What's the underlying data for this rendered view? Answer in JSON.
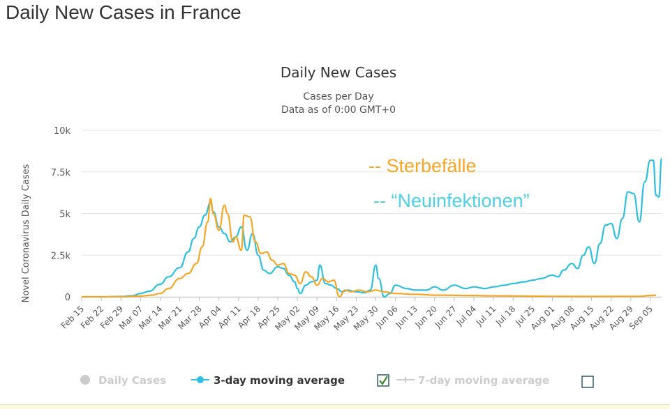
{
  "page": {
    "heading": "Daily New Cases in France"
  },
  "chart_data": {
    "type": "line",
    "title": "Daily New Cases",
    "subtitle_line1": "Cases per Day",
    "subtitle_line2": "Data as of 0:00 GMT+0",
    "ylabel": "Novel Coronavirus Daily Cases",
    "xlabel": "",
    "ylim": [
      0,
      10000
    ],
    "y_ticks": [
      0,
      2500,
      5000,
      7500,
      10000
    ],
    "y_tick_labels": [
      "0",
      "2.5k",
      "5k",
      "7.5k",
      "10k"
    ],
    "grid": true,
    "x_start": "Feb 15",
    "x_end": "Sep 09",
    "x_tick_labels": [
      "Feb 15",
      "Feb 22",
      "Feb 29",
      "Mar 07",
      "Mar 14",
      "Mar 21",
      "Mar 28",
      "Apr 04",
      "Apr 11",
      "Apr 18",
      "Apr 25",
      "May 02",
      "May 09",
      "May 16",
      "May 23",
      "May 30",
      "Jun 06",
      "Jun 13",
      "Jun 20",
      "Jun 27",
      "Jul 04",
      "Jul 11",
      "Jul 18",
      "Jul 25",
      "Aug 01",
      "Aug 08",
      "Aug 15",
      "Aug 22",
      "Aug 29",
      "Sep 05"
    ],
    "series": [
      {
        "name": "3-day moving average",
        "color": "#2cbfe0",
        "points": [
          [
            "Feb 15",
            0
          ],
          [
            "Feb 22",
            0
          ],
          [
            "Feb 29",
            20
          ],
          [
            "Mar 04",
            60
          ],
          [
            "Mar 07",
            200
          ],
          [
            "Mar 10",
            330
          ],
          [
            "Mar 14",
            750
          ],
          [
            "Mar 17",
            1200
          ],
          [
            "Mar 21",
            1750
          ],
          [
            "Mar 24",
            2700
          ],
          [
            "Mar 26",
            3500
          ],
          [
            "Mar 28",
            4200
          ],
          [
            "Mar 30",
            4900
          ],
          [
            "Apr 01",
            5650
          ],
          [
            "Apr 02",
            5100
          ],
          [
            "Apr 04",
            4200
          ],
          [
            "Apr 06",
            3800
          ],
          [
            "Apr 08",
            3300
          ],
          [
            "Apr 10",
            3600
          ],
          [
            "Apr 12",
            4200
          ],
          [
            "Apr 14",
            2800
          ],
          [
            "Apr 16",
            3800
          ],
          [
            "Apr 18",
            2500
          ],
          [
            "Apr 20",
            1600
          ],
          [
            "Apr 22",
            1400
          ],
          [
            "Apr 25",
            1800
          ],
          [
            "Apr 27",
            1700
          ],
          [
            "Apr 29",
            1300
          ],
          [
            "May 01",
            900
          ],
          [
            "May 02",
            500
          ],
          [
            "May 03",
            200
          ],
          [
            "May 05",
            700
          ],
          [
            "May 07",
            900
          ],
          [
            "May 09",
            1000
          ],
          [
            "May 10",
            1900
          ],
          [
            "May 12",
            800
          ],
          [
            "May 14",
            700
          ],
          [
            "May 16",
            500
          ],
          [
            "May 18",
            300
          ],
          [
            "May 20",
            400
          ],
          [
            "May 23",
            300
          ],
          [
            "May 26",
            250
          ],
          [
            "May 28",
            400
          ],
          [
            "May 30",
            1900
          ],
          [
            "May 31",
            1100
          ],
          [
            "Jun 02",
            0
          ],
          [
            "Jun 04",
            200
          ],
          [
            "Jun 06",
            700
          ],
          [
            "Jun 10",
            500
          ],
          [
            "Jun 13",
            400
          ],
          [
            "Jun 17",
            400
          ],
          [
            "Jun 20",
            600
          ],
          [
            "Jun 23",
            400
          ],
          [
            "Jun 27",
            700
          ],
          [
            "Jul 01",
            500
          ],
          [
            "Jul 04",
            600
          ],
          [
            "Jul 08",
            500
          ],
          [
            "Jul 11",
            600
          ],
          [
            "Jul 15",
            700
          ],
          [
            "Jul 18",
            800
          ],
          [
            "Jul 22",
            900
          ],
          [
            "Jul 25",
            1000
          ],
          [
            "Jul 28",
            1100
          ],
          [
            "Aug 01",
            1300
          ],
          [
            "Aug 03",
            1200
          ],
          [
            "Aug 05",
            1600
          ],
          [
            "Aug 08",
            2000
          ],
          [
            "Aug 10",
            1700
          ],
          [
            "Aug 12",
            2500
          ],
          [
            "Aug 14",
            3000
          ],
          [
            "Aug 16",
            2000
          ],
          [
            "Aug 18",
            3200
          ],
          [
            "Aug 20",
            4300
          ],
          [
            "Aug 22",
            4400
          ],
          [
            "Aug 24",
            3500
          ],
          [
            "Aug 26",
            4700
          ],
          [
            "Aug 28",
            6300
          ],
          [
            "Aug 30",
            6200
          ],
          [
            "Sep 01",
            4500
          ],
          [
            "Sep 03",
            6900
          ],
          [
            "Sep 05",
            8200
          ],
          [
            "Sep 06",
            8200
          ],
          [
            "Sep 07",
            6100
          ],
          [
            "Sep 08",
            6000
          ],
          [
            "Sep 09",
            8300
          ]
        ]
      },
      {
        "name": "Sterbefälle",
        "color": "#f5a623",
        "points": [
          [
            "Feb 15",
            0
          ],
          [
            "Mar 01",
            0
          ],
          [
            "Mar 07",
            50
          ],
          [
            "Mar 11",
            100
          ],
          [
            "Mar 14",
            200
          ],
          [
            "Mar 17",
            500
          ],
          [
            "Mar 21",
            1100
          ],
          [
            "Mar 24",
            1400
          ],
          [
            "Mar 27",
            2000
          ],
          [
            "Mar 29",
            3000
          ],
          [
            "Mar 31",
            4500
          ],
          [
            "Apr 01",
            5900
          ],
          [
            "Apr 02",
            5000
          ],
          [
            "Apr 04",
            4000
          ],
          [
            "Apr 06",
            5500
          ],
          [
            "Apr 07",
            5000
          ],
          [
            "Apr 09",
            3300
          ],
          [
            "Apr 10",
            3600
          ],
          [
            "Apr 12",
            2800
          ],
          [
            "Apr 13",
            4900
          ],
          [
            "Apr 15",
            4800
          ],
          [
            "Apr 17",
            3300
          ],
          [
            "Apr 19",
            2600
          ],
          [
            "Apr 21",
            2700
          ],
          [
            "Apr 23",
            2200
          ],
          [
            "Apr 25",
            1900
          ],
          [
            "Apr 27",
            2000
          ],
          [
            "Apr 29",
            1400
          ],
          [
            "May 01",
            1300
          ],
          [
            "May 03",
            800
          ],
          [
            "May 05",
            1500
          ],
          [
            "May 07",
            1200
          ],
          [
            "May 09",
            700
          ],
          [
            "May 11",
            1100
          ],
          [
            "May 13",
            900
          ],
          [
            "May 15",
            1000
          ],
          [
            "May 17",
            0
          ],
          [
            "May 19",
            400
          ],
          [
            "May 21",
            300
          ],
          [
            "May 24",
            400
          ],
          [
            "May 27",
            300
          ],
          [
            "May 30",
            400
          ],
          [
            "Jun 02",
            300
          ],
          [
            "Jun 06",
            200
          ],
          [
            "Jun 13",
            150
          ],
          [
            "Jun 20",
            100
          ],
          [
            "Jul 04",
            80
          ],
          [
            "Jul 11",
            60
          ],
          [
            "Aug 01",
            30
          ],
          [
            "Aug 15",
            20
          ],
          [
            "Sep 01",
            30
          ],
          [
            "Sep 05",
            80
          ],
          [
            "Sep 07",
            100
          ]
        ]
      }
    ],
    "annotations": [
      {
        "text": "-- Sterbefälle",
        "color": "#f5a623"
      },
      {
        "text": "-- “Neuinfektionen”",
        "color": "#4dd0e8"
      }
    ],
    "legend": {
      "placement": "bottom",
      "items": [
        {
          "label": "Daily Cases",
          "active": false,
          "color": "#cccccc",
          "marker": "circle"
        },
        {
          "label": "3-day moving average",
          "active": true,
          "color": "#2cbfe0",
          "marker": "line-circle"
        },
        {
          "label": "7-day moving average",
          "active": false,
          "color": "#cccccc",
          "marker": "line-plus"
        }
      ],
      "checkboxes": [
        {
          "checked": true,
          "checkmark_color": "#3a8a2a"
        },
        {
          "checked": false
        }
      ]
    }
  }
}
